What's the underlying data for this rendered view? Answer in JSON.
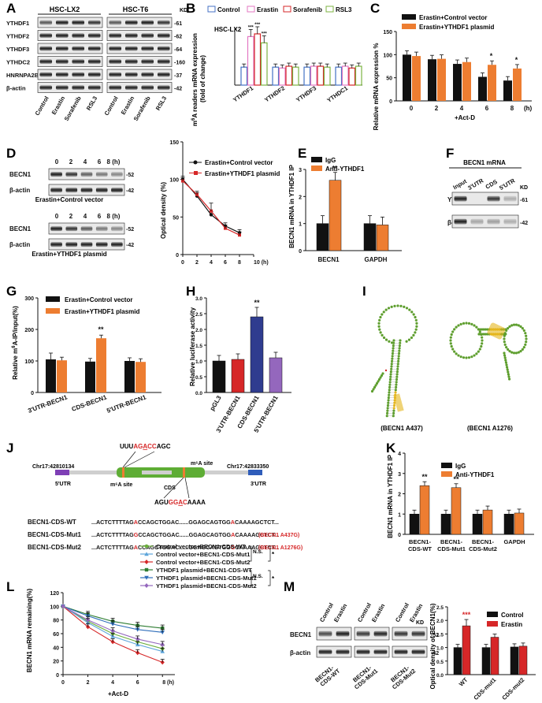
{
  "colors": {
    "control": "#4472C4",
    "erastin": "#E377C2",
    "sorafenib": "#D62728",
    "rsl3": "#7CB342",
    "black": "#111111",
    "orange": "#ED7D31",
    "red": "#D62728",
    "navy": "#2F3C8F",
    "purple": "#9467BD",
    "green": "#6AAE3A",
    "light_blue": "#5DA5DA",
    "dark_green": "#2E7D32",
    "blue_tri": "#2F6EBA"
  },
  "panel_letters": {
    "A": "A",
    "B": "B",
    "C": "C",
    "D": "D",
    "E": "E",
    "F": "F",
    "G": "G",
    "H": "H",
    "I": "I",
    "J": "J",
    "K": "K",
    "L": "L",
    "M": "M"
  },
  "common": {
    "kd": "KD",
    "beta_actin": "β-actin",
    "becn1": "BECN1",
    "time_unit": "(h)",
    "sig2": "**",
    "sig1": "*",
    "sig3": "***",
    "ns": "N.S.",
    "actd": "+Act-D"
  },
  "panelA": {
    "groups": [
      "HSC-LX2",
      "HSC-T6"
    ],
    "lanes": [
      "Control",
      "Erastin",
      "Sorafenib",
      "RSL3",
      "Control",
      "Erastin",
      "Sorafenib",
      "RSL3"
    ],
    "rows": [
      {
        "label": "YTHDF1",
        "kd": "61"
      },
      {
        "label": "YTHDF2",
        "kd": "62"
      },
      {
        "label": "YTHDF3",
        "kd": "64"
      },
      {
        "label": "YTHDC2",
        "kd": "160"
      },
      {
        "label": "HNRNPA2B1",
        "kd": "37"
      },
      {
        "label": "β-actin",
        "kd": "42"
      }
    ]
  },
  "panelB": {
    "chart_data": {
      "type": "bar",
      "subtitle": "HSC-LX2",
      "ylabel": "m6A readers mRNA expression (fold of change)",
      "categories": [
        "YTHDF1",
        "YTHDF2",
        "YTHDF3",
        "YTHDC1"
      ],
      "series": [
        {
          "name": "Control",
          "values": [
            1.0,
            1.0,
            1.0,
            1.0
          ]
        },
        {
          "name": "Erastin",
          "values": [
            2.7,
            0.95,
            1.05,
            1.05
          ]
        },
        {
          "name": "Sorafenib",
          "values": [
            2.85,
            1.05,
            1.05,
            0.95
          ]
        },
        {
          "name": "RSL3",
          "values": [
            2.35,
            1.0,
            1.0,
            1.05
          ]
        }
      ],
      "sig": [
        "***",
        "***",
        "***"
      ]
    }
  },
  "panelC": {
    "legend": [
      "Erastin+Control vector",
      "Erastin+YTHDF1 plasmid"
    ],
    "chart_data": {
      "type": "bar",
      "ylabel": "Relative mRNA expression %",
      "xlabel": "+Act-D",
      "categories": [
        "0",
        "2",
        "4",
        "6",
        "8"
      ],
      "yticks": [
        "0",
        "50",
        "100",
        "150"
      ],
      "ylim": [
        0,
        150
      ],
      "series": [
        {
          "name": "Erastin+Control vector",
          "values": [
            100,
            90,
            80,
            52,
            44
          ]
        },
        {
          "name": "Erastin+YTHDF1 plasmid",
          "values": [
            97,
            91,
            84,
            78,
            70
          ]
        }
      ],
      "sig": [
        "",
        "",
        "",
        "*",
        "*"
      ]
    }
  },
  "panelD": {
    "times": [
      "0",
      "2",
      "4",
      "6",
      "8 (h)"
    ],
    "blot1_caption": "Erastin+Control vector",
    "blot2_caption": "Erastin+YTHDF1 plasmid",
    "chart_data": {
      "type": "line",
      "ylabel": "Optical density (%)",
      "xticks": [
        "0",
        "2",
        "4",
        "6",
        "8",
        "10 (h)"
      ],
      "yticks": [
        "0",
        "50",
        "100",
        "150"
      ],
      "ylim": [
        0,
        150
      ],
      "xlim": [
        0,
        10
      ],
      "series": [
        {
          "name": "Erastin+Control vector",
          "x": [
            0,
            2,
            4,
            6,
            8
          ],
          "y": [
            100,
            78,
            53,
            38,
            29
          ]
        },
        {
          "name": "Erastin+YTHDF1 plasmid",
          "x": [
            0,
            2,
            4,
            6,
            8
          ],
          "y": [
            98,
            80,
            58,
            35,
            26
          ]
        }
      ]
    }
  },
  "panelE": {
    "legend": [
      "IgG",
      "Anti-YTHDF1"
    ],
    "chart_data": {
      "type": "bar",
      "ylabel": "BECN1 mRNA in YTHDF1 IP",
      "categories": [
        "BECN1",
        "GAPDH"
      ],
      "yticks": [
        "0",
        "1",
        "2",
        "3"
      ],
      "ylim": [
        0,
        3
      ],
      "series": [
        {
          "name": "IgG",
          "values": [
            1.0,
            1.0
          ]
        },
        {
          "name": "Anti-YTHDF1",
          "values": [
            2.6,
            0.95
          ]
        }
      ],
      "sig": [
        "**",
        ""
      ]
    }
  },
  "panelF": {
    "title": "BECN1 mRNA",
    "lanes": [
      "Input",
      "3'UTR",
      "CDS",
      "5'UTR"
    ],
    "rows": [
      {
        "label": "YTHDF1",
        "kd": "61"
      },
      {
        "label": "β-actin",
        "kd": "42"
      }
    ]
  },
  "panelG": {
    "legend": [
      "Erastin+Control vector",
      "Erastin+YTHDF1 plasmid"
    ],
    "chart_data": {
      "type": "bar",
      "ylabel": "Relative m6A-IP/input(%)",
      "categories": [
        "3'UTR-BECN1",
        "CDS-BECN1",
        "5'UTR-BECN1"
      ],
      "yticks": [
        "0",
        "100",
        "200",
        "300"
      ],
      "ylim": [
        0,
        300
      ],
      "series": [
        {
          "name": "Erastin+Control vector",
          "values": [
            105,
            98,
            100
          ]
        },
        {
          "name": "Erastin+YTHDF1 plasmid",
          "values": [
            102,
            172,
            97
          ]
        }
      ],
      "sig": [
        "",
        "**",
        ""
      ]
    }
  },
  "panelH": {
    "chart_data": {
      "type": "bar",
      "ylabel": "Relative luciferase activity",
      "categories": [
        "pGL3",
        "3'UTR-BECN1",
        "CDS-BECN1",
        "5'UTR-BECN1"
      ],
      "yticks": [
        "0.0",
        "0.5",
        "1.0",
        "1.5",
        "2.0",
        "2.5",
        "3.0"
      ],
      "ylim": [
        0,
        3
      ],
      "values": [
        1.0,
        1.05,
        2.4,
        1.1
      ],
      "sig": [
        "",
        "",
        "**",
        ""
      ]
    }
  },
  "panelI": {
    "labels": [
      "(BECN1 A437)",
      "(BECN1 A1276)"
    ]
  },
  "panelJ": {
    "chr_left": "Chr17:42810134",
    "chr_right": "Chr17:42833350",
    "utr5": "5'UTR",
    "utr3": "3'UTR",
    "cds": "CDS",
    "m6a_site1": "m⁶A site",
    "m6a_site2": "m⁶A site",
    "motif_top": [
      "UUU",
      "AG",
      "A",
      "CC",
      "AGC"
    ],
    "motif_bottom": [
      "AGU",
      "GG",
      "A",
      "C",
      "AAAA"
    ],
    "sequences": [
      {
        "name": "BECN1-CDS-WT",
        "a": "...ACTCTTTTAG",
        "b": "A",
        "c": "CCAGCTGGAC......GGAGCAGTGG",
        "d": "A",
        "e": "CAAAAGCTCT...",
        "note": ""
      },
      {
        "name": "BECN1-CDS-Mut1",
        "a": "...ACTCTTTTAG",
        "b": "G",
        "c": "CCAGCTGGAC......GGAGCAGTGG",
        "d": "A",
        "e": "CAAAAGCTCT...",
        "note": "(BECN1 A437G)"
      },
      {
        "name": "BECN1-CDS-Mut2",
        "a": "...ACTCTTTTAG",
        "b": "A",
        "c": "CCAGCTGGAC......GGAGCAGTGG",
        "d": "G",
        "e": "CAAAAGCTCT...",
        "note": "(BECN1 A1276G)"
      }
    ]
  },
  "panelK": {
    "legend": [
      "IgG",
      "Anti-YTHDF1"
    ],
    "chart_data": {
      "type": "bar",
      "ylabel": "BECN1 mRNA in YTHDF1 IP",
      "categories": [
        "BECN1-CDS-WT",
        "BECN1-CDS-Mut1",
        "BECN1-CDS-Mut2",
        "GAPDH"
      ],
      "yticks": [
        "0",
        "1",
        "2",
        "3",
        "4"
      ],
      "ylim": [
        0,
        4
      ],
      "series": [
        {
          "name": "IgG",
          "values": [
            1.0,
            1.0,
            1.0,
            1.0
          ]
        },
        {
          "name": "Anti-YTHDF1",
          "values": [
            2.4,
            2.3,
            1.2,
            1.05
          ]
        }
      ],
      "sig": [
        "**",
        "**",
        "",
        ""
      ]
    }
  },
  "panelL": {
    "legend": [
      "Control vector+BECN1-CDS-WT",
      "Control vector+BECN1-CDS-Mut1",
      "Control vector+BECN1-CDS-Mut2",
      "YTHDF1 plasmid+BECN1-CDS-WT",
      "YTHDF1 plasmid+BECN1-CDS-Mut1",
      "YTHDF1 plasmid+BECN1-CDS-Mut2"
    ],
    "chart_data": {
      "type": "line",
      "ylabel": "BECN1 mRNA remaining(%)",
      "xlabel": "+Act-D",
      "xticks": [
        "0",
        "2",
        "4",
        "6",
        "8 (h)"
      ],
      "yticks": [
        "0",
        "20",
        "40",
        "60",
        "80",
        "100",
        "120"
      ],
      "ylim": [
        0,
        120
      ],
      "xlim": [
        0,
        9
      ],
      "series": [
        {
          "name": "Control vector+BECN1-CDS-WT",
          "x": [
            0,
            2,
            4,
            6,
            8
          ],
          "y": [
            100,
            78,
            60,
            48,
            38
          ]
        },
        {
          "name": "Control vector+BECN1-CDS-Mut1",
          "x": [
            0,
            2,
            4,
            6,
            8
          ],
          "y": [
            100,
            76,
            56,
            44,
            34
          ]
        },
        {
          "name": "Control vector+BECN1-CDS-Mut2",
          "x": [
            0,
            2,
            4,
            6,
            8
          ],
          "y": [
            100,
            70,
            48,
            32,
            18
          ]
        },
        {
          "name": "YTHDF1 plasmid+BECN1-CDS-WT",
          "x": [
            0,
            2,
            4,
            6,
            8
          ],
          "y": [
            100,
            88,
            78,
            72,
            68
          ]
        },
        {
          "name": "YTHDF1 plasmid+BECN1-CDS-Mut1",
          "x": [
            0,
            2,
            4,
            6,
            8
          ],
          "y": [
            100,
            86,
            74,
            66,
            62
          ]
        },
        {
          "name": "YTHDF1 plasmid+BECN1-CDS-Mut2",
          "x": [
            0,
            2,
            4,
            6,
            8
          ],
          "y": [
            100,
            80,
            64,
            52,
            44
          ]
        }
      ]
    }
  },
  "panelM": {
    "lanes": [
      "Control",
      "Erastin",
      "Control",
      "Erastin",
      "Control",
      "Erastin"
    ],
    "groups": [
      "BECN1-CDS-WT",
      "BECN1-CDS-Mut1",
      "BECN1-CDS-Mut2"
    ],
    "legend": [
      "Control",
      "Erastin"
    ],
    "chart_data": {
      "type": "bar",
      "ylabel": "Optical density of BECN1(%)",
      "categories": [
        "WT",
        "CDS-mut1",
        "CDS-mut2"
      ],
      "yticks": [
        "0.0",
        "0.5",
        "1.0",
        "1.5",
        "2.0",
        "2.5"
      ],
      "ylim": [
        0,
        2.5
      ],
      "series": [
        {
          "name": "Control",
          "values": [
            1.0,
            1.0,
            1.02
          ]
        },
        {
          "name": "Erastin",
          "values": [
            1.8,
            1.38,
            1.05
          ]
        }
      ],
      "sig": [
        "***",
        "*",
        ""
      ]
    }
  }
}
